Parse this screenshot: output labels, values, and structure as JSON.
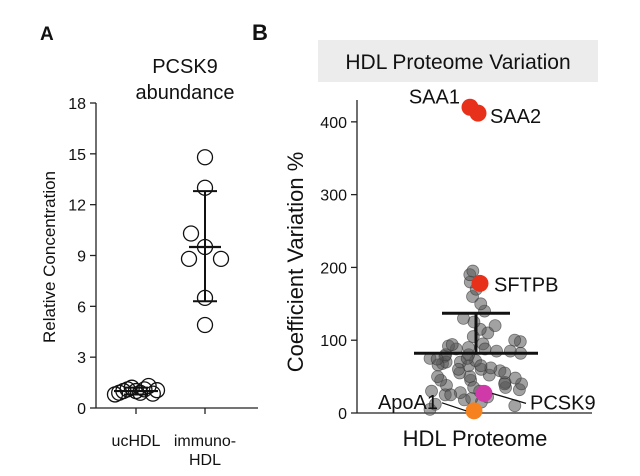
{
  "chart_data": [
    {
      "panel": "A",
      "type": "scatter",
      "title_lines": [
        "PCSK9",
        "abundance"
      ],
      "ylabel": "Relative Concentration",
      "yticks": [
        0,
        3,
        6,
        9,
        12,
        15,
        18
      ],
      "ylim": [
        0,
        18
      ],
      "categories": [
        {
          "label_lines": [
            "ucHDL"
          ],
          "points": [
            0.8,
            0.9,
            1.0,
            1.1,
            1.2,
            1.0,
            0.9,
            1.1,
            1.3,
            0.85,
            1.05
          ],
          "mean": 1.0,
          "sd_low": 0.8,
          "sd_high": 1.2
        },
        {
          "label_lines": [
            "immuno-",
            "HDL"
          ],
          "points": [
            14.8,
            13.0,
            10.3,
            9.5,
            8.8,
            8.8,
            6.5,
            4.9
          ],
          "mean": 9.5,
          "sd_low": 6.3,
          "sd_high": 12.8
        }
      ]
    },
    {
      "panel": "B",
      "type": "scatter",
      "title": "HDL Proteome Variation",
      "ylabel": "Coefficient Variation %",
      "xlabel": "HDL Proteome",
      "yticks": [
        0,
        100,
        200,
        300,
        400
      ],
      "ylim": [
        0,
        430
      ],
      "background_points": [
        5,
        10,
        12,
        15,
        18,
        20,
        22,
        25,
        28,
        30,
        32,
        35,
        38,
        40,
        42,
        45,
        48,
        50,
        52,
        55,
        58,
        60,
        62,
        65,
        68,
        70,
        72,
        75,
        78,
        80,
        82,
        85,
        88,
        90,
        92,
        95,
        98,
        100,
        105,
        110,
        115,
        120,
        125,
        130,
        140,
        150,
        160,
        170,
        180,
        190,
        195,
        45,
        55,
        65,
        75,
        85,
        35,
        25,
        60,
        70,
        80,
        50,
        40,
        30,
        66,
        74,
        88,
        94
      ],
      "mean": 82,
      "sd_high": 137,
      "highlights": [
        {
          "label": "SAA1",
          "value": 420,
          "color": "#e8311a"
        },
        {
          "label": "SAA2",
          "value": 412,
          "color": "#e8311a"
        },
        {
          "label": "SFTPB",
          "value": 178,
          "color": "#e8311a"
        },
        {
          "label": "PCSK9",
          "value": 27,
          "color": "#d03aa8"
        },
        {
          "label": "ApoA1",
          "value": 3,
          "color": "#f5821f"
        }
      ],
      "title_box_color": "#ececec"
    }
  ],
  "panel_labels": {
    "a": "A",
    "b": "B"
  }
}
